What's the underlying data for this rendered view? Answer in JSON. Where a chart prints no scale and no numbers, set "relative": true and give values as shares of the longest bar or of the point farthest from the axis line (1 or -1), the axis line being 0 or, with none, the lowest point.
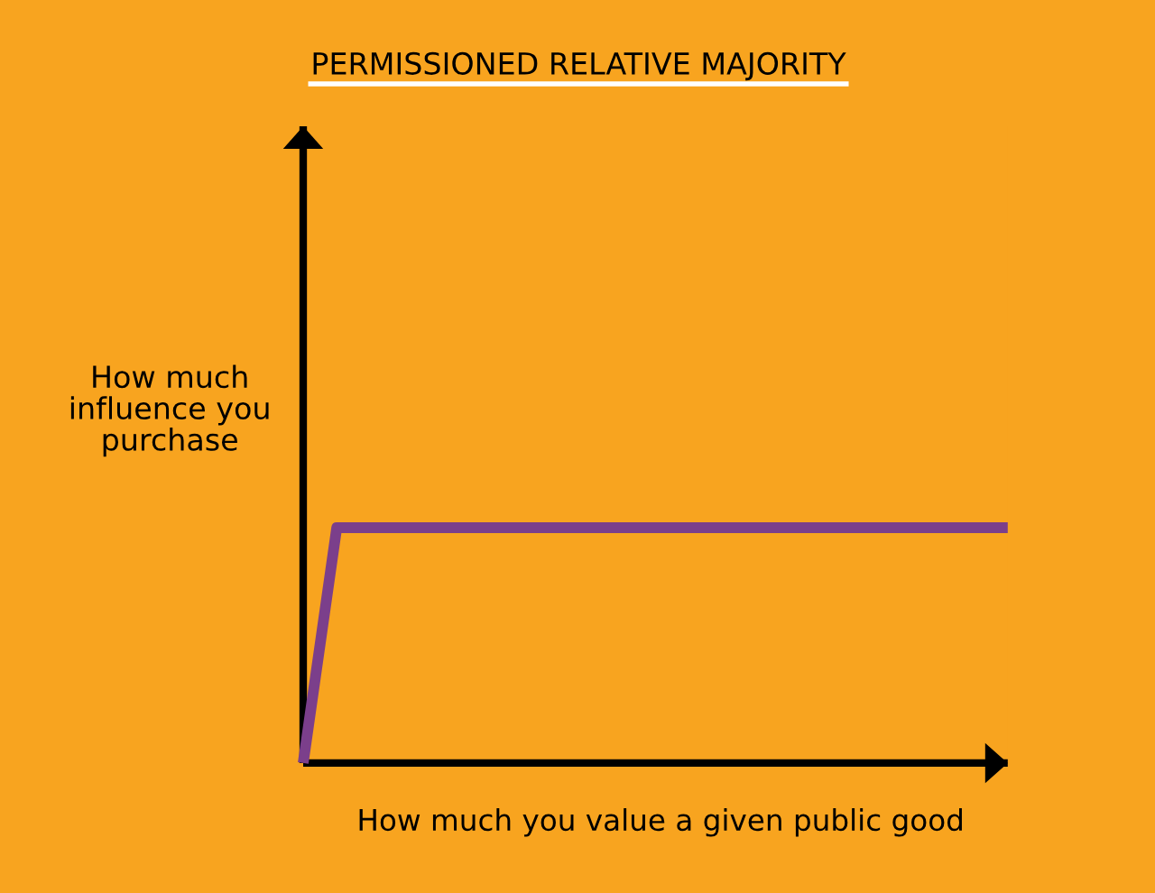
{
  "chart_data": {
    "type": "line",
    "title": "PERMISSIONED RELATIVE MAJORITY",
    "xlabel": "How much you value a given public good",
    "ylabel": "How much\ninfluence you\npurchase",
    "relative": true,
    "categories": [
      null,
      null,
      null,
      null,
      null,
      null,
      null,
      null,
      null,
      null,
      null,
      null,
      null,
      null,
      null,
      null,
      null,
      null,
      null,
      null,
      null,
      null
    ],
    "series": [
      {
        "color": "#7b3f8b",
        "values": [
          0,
          1,
          1,
          1,
          1,
          1,
          1,
          1,
          1,
          1,
          1,
          1,
          1,
          1,
          1,
          1,
          1,
          1,
          1,
          1,
          1,
          1
        ]
      }
    ],
    "marker": "none",
    "line_style": "solid"
  }
}
